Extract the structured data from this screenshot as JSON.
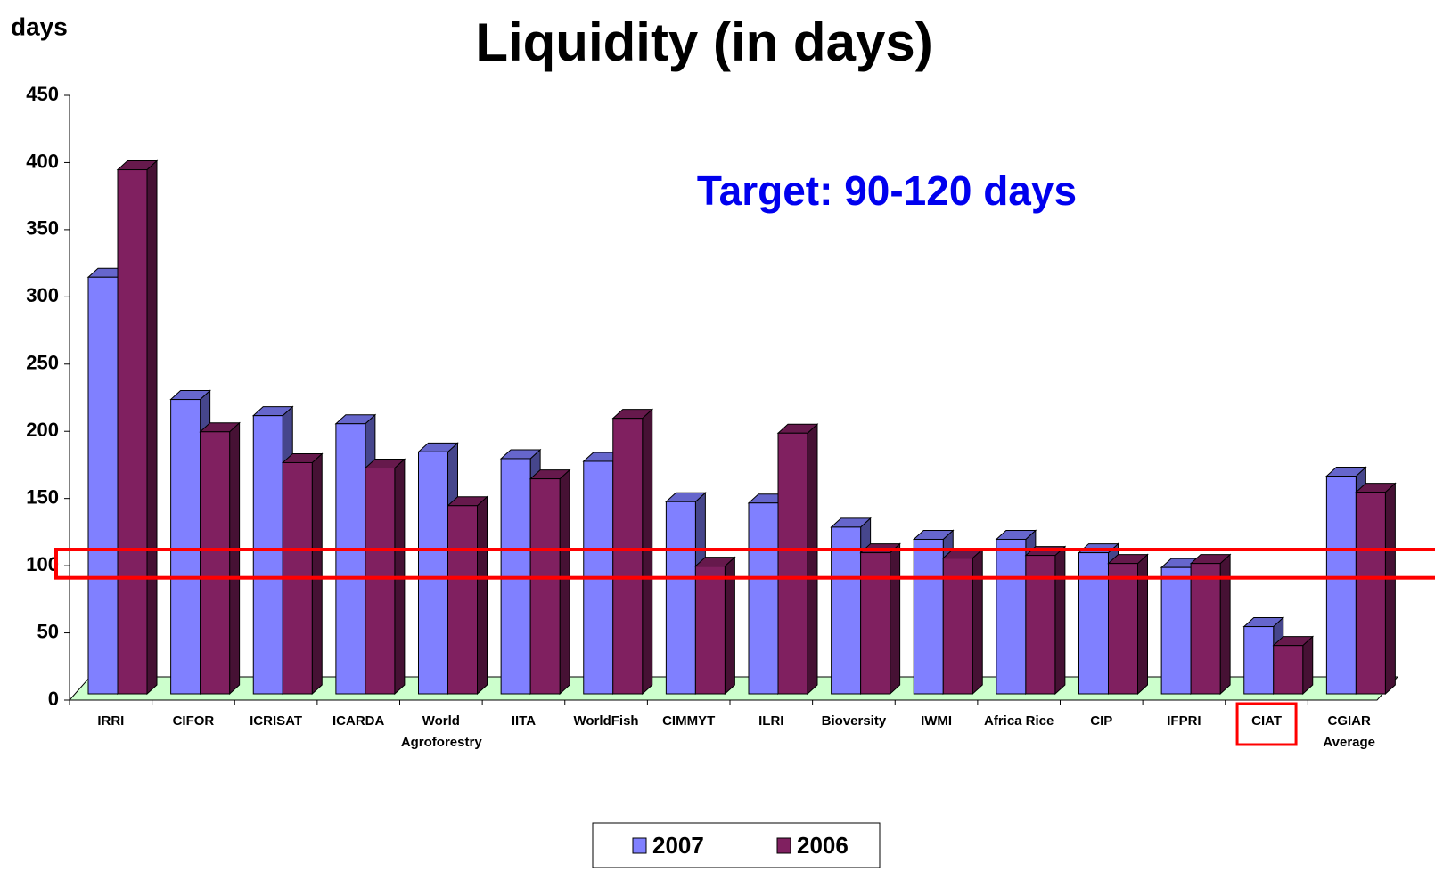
{
  "chart_data": {
    "type": "bar3d",
    "title": "Liquidity (in days)",
    "y_label": "days",
    "annotation": "Target:  90-120 days",
    "categories": [
      "IRRI",
      "CIFOR",
      "ICRISAT",
      "ICARDA",
      "World Agroforestry",
      "IITA",
      "WorldFish",
      "CIMMYT",
      "ILRI",
      "Bioversity",
      "IWMI",
      "Africa Rice",
      "CIP",
      "IFPRI",
      "CIAT",
      "CGIAR Average"
    ],
    "series": [
      {
        "name": "2007",
        "color": "#8080ff",
        "values": [
          310,
          219,
          207,
          201,
          180,
          175,
          173,
          143,
          142,
          124,
          115,
          115,
          105,
          94,
          50,
          162
        ]
      },
      {
        "name": "2006",
        "color": "#802060",
        "values": [
          390,
          195,
          172,
          168,
          140,
          160,
          205,
          95,
          194,
          105,
          101,
          103,
          97,
          97,
          36,
          150
        ]
      }
    ],
    "ylim": [
      0,
      450
    ],
    "yticks": [
      0,
      50,
      100,
      150,
      200,
      250,
      300,
      350,
      400,
      450
    ],
    "highlight_band": [
      91,
      112
    ],
    "highlight_index": 14,
    "legend": "bottom"
  }
}
